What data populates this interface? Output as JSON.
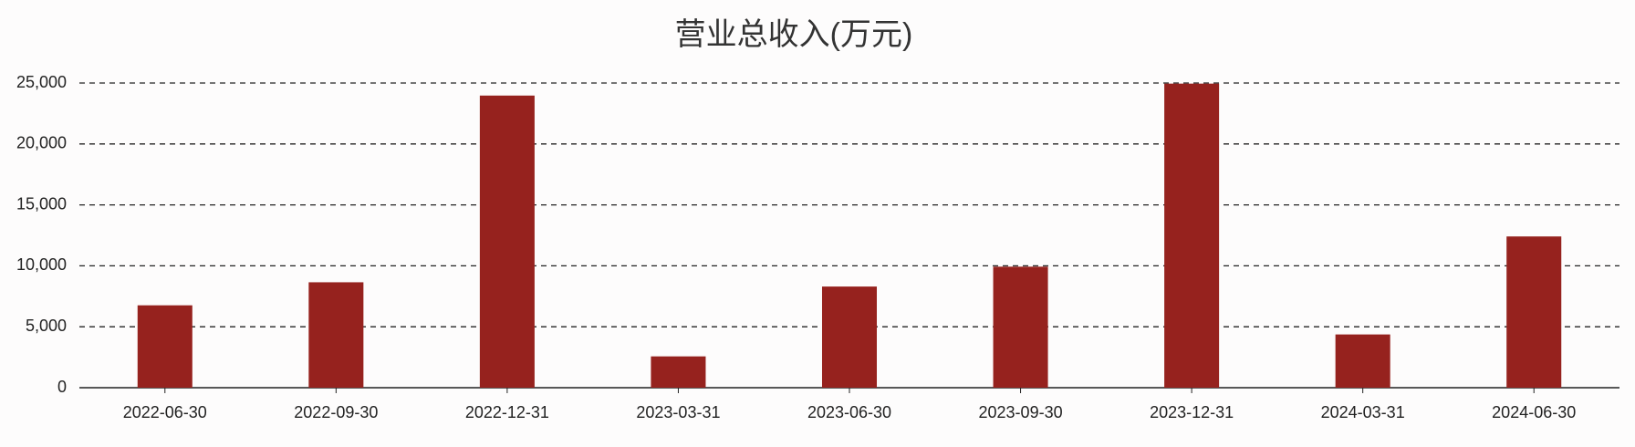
{
  "chart_data": {
    "type": "bar",
    "title": "营业总收入(万元)",
    "categories": [
      "2022-06-30",
      "2022-09-30",
      "2022-12-31",
      "2023-03-31",
      "2023-06-30",
      "2023-09-30",
      "2023-12-31",
      "2024-03-31",
      "2024-06-30"
    ],
    "values": [
      6760,
      8650,
      23970,
      2570,
      8300,
      9930,
      24950,
      4370,
      12410
    ],
    "color": "#96221e",
    "ylim": [
      0,
      25000
    ],
    "yticks": [
      0,
      {
        "value": 5000,
        "label": "5,000"
      },
      {
        "value": 10000,
        "label": "10,000"
      },
      {
        "value": 15000,
        "label": "15,000"
      },
      {
        "value": 20000,
        "label": "20,000"
      },
      {
        "value": 25000,
        "label": "25,000"
      }
    ],
    "grid": true
  }
}
